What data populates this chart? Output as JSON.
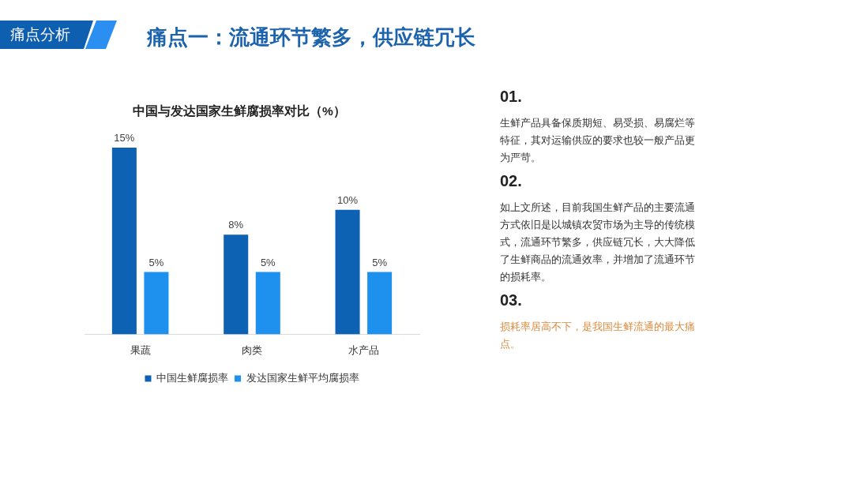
{
  "chart_data": {
    "type": "bar",
    "title": "痛点一：流通环节繁多，供应链冗长",
    "subtitle": "中国与发达国家生鲜腐损率对比（%）",
    "categories": [
      "果蔬",
      "肉类",
      "水产品"
    ],
    "series": [
      {
        "name": "中国生鲜腐损率",
        "color": "#0e62b3",
        "values": [
          15,
          8,
          10
        ],
        "value_labels": [
          "15%",
          "8%",
          "10%"
        ]
      },
      {
        "name": "发达国家生鲜平均腐损率",
        "color": "#1e90ee",
        "values": [
          5,
          5,
          5
        ],
        "value_labels": [
          "5%",
          "5%",
          "5%"
        ]
      }
    ],
    "tick_labels": "x",
    "legend": "bottom",
    "annotations": [
      "痛点分析",
      "01.",
      "生鲜产品具备保质期短、易受损、易腐烂等特征，其对运输供应的要求也较一般产品更为严苛。",
      "02.",
      "如上文所述，目前我国生鲜产品的主要流通方式依旧是以城镇农贸市场为主导的传统模式，流通环节繁多，供应链冗长，大大降低了生鲜商品的流通效率，并增加了流通环节的损耗率。",
      "03.",
      "损耗率居高不下，是我国生鲜流通的最大痛点。"
    ]
  }
}
